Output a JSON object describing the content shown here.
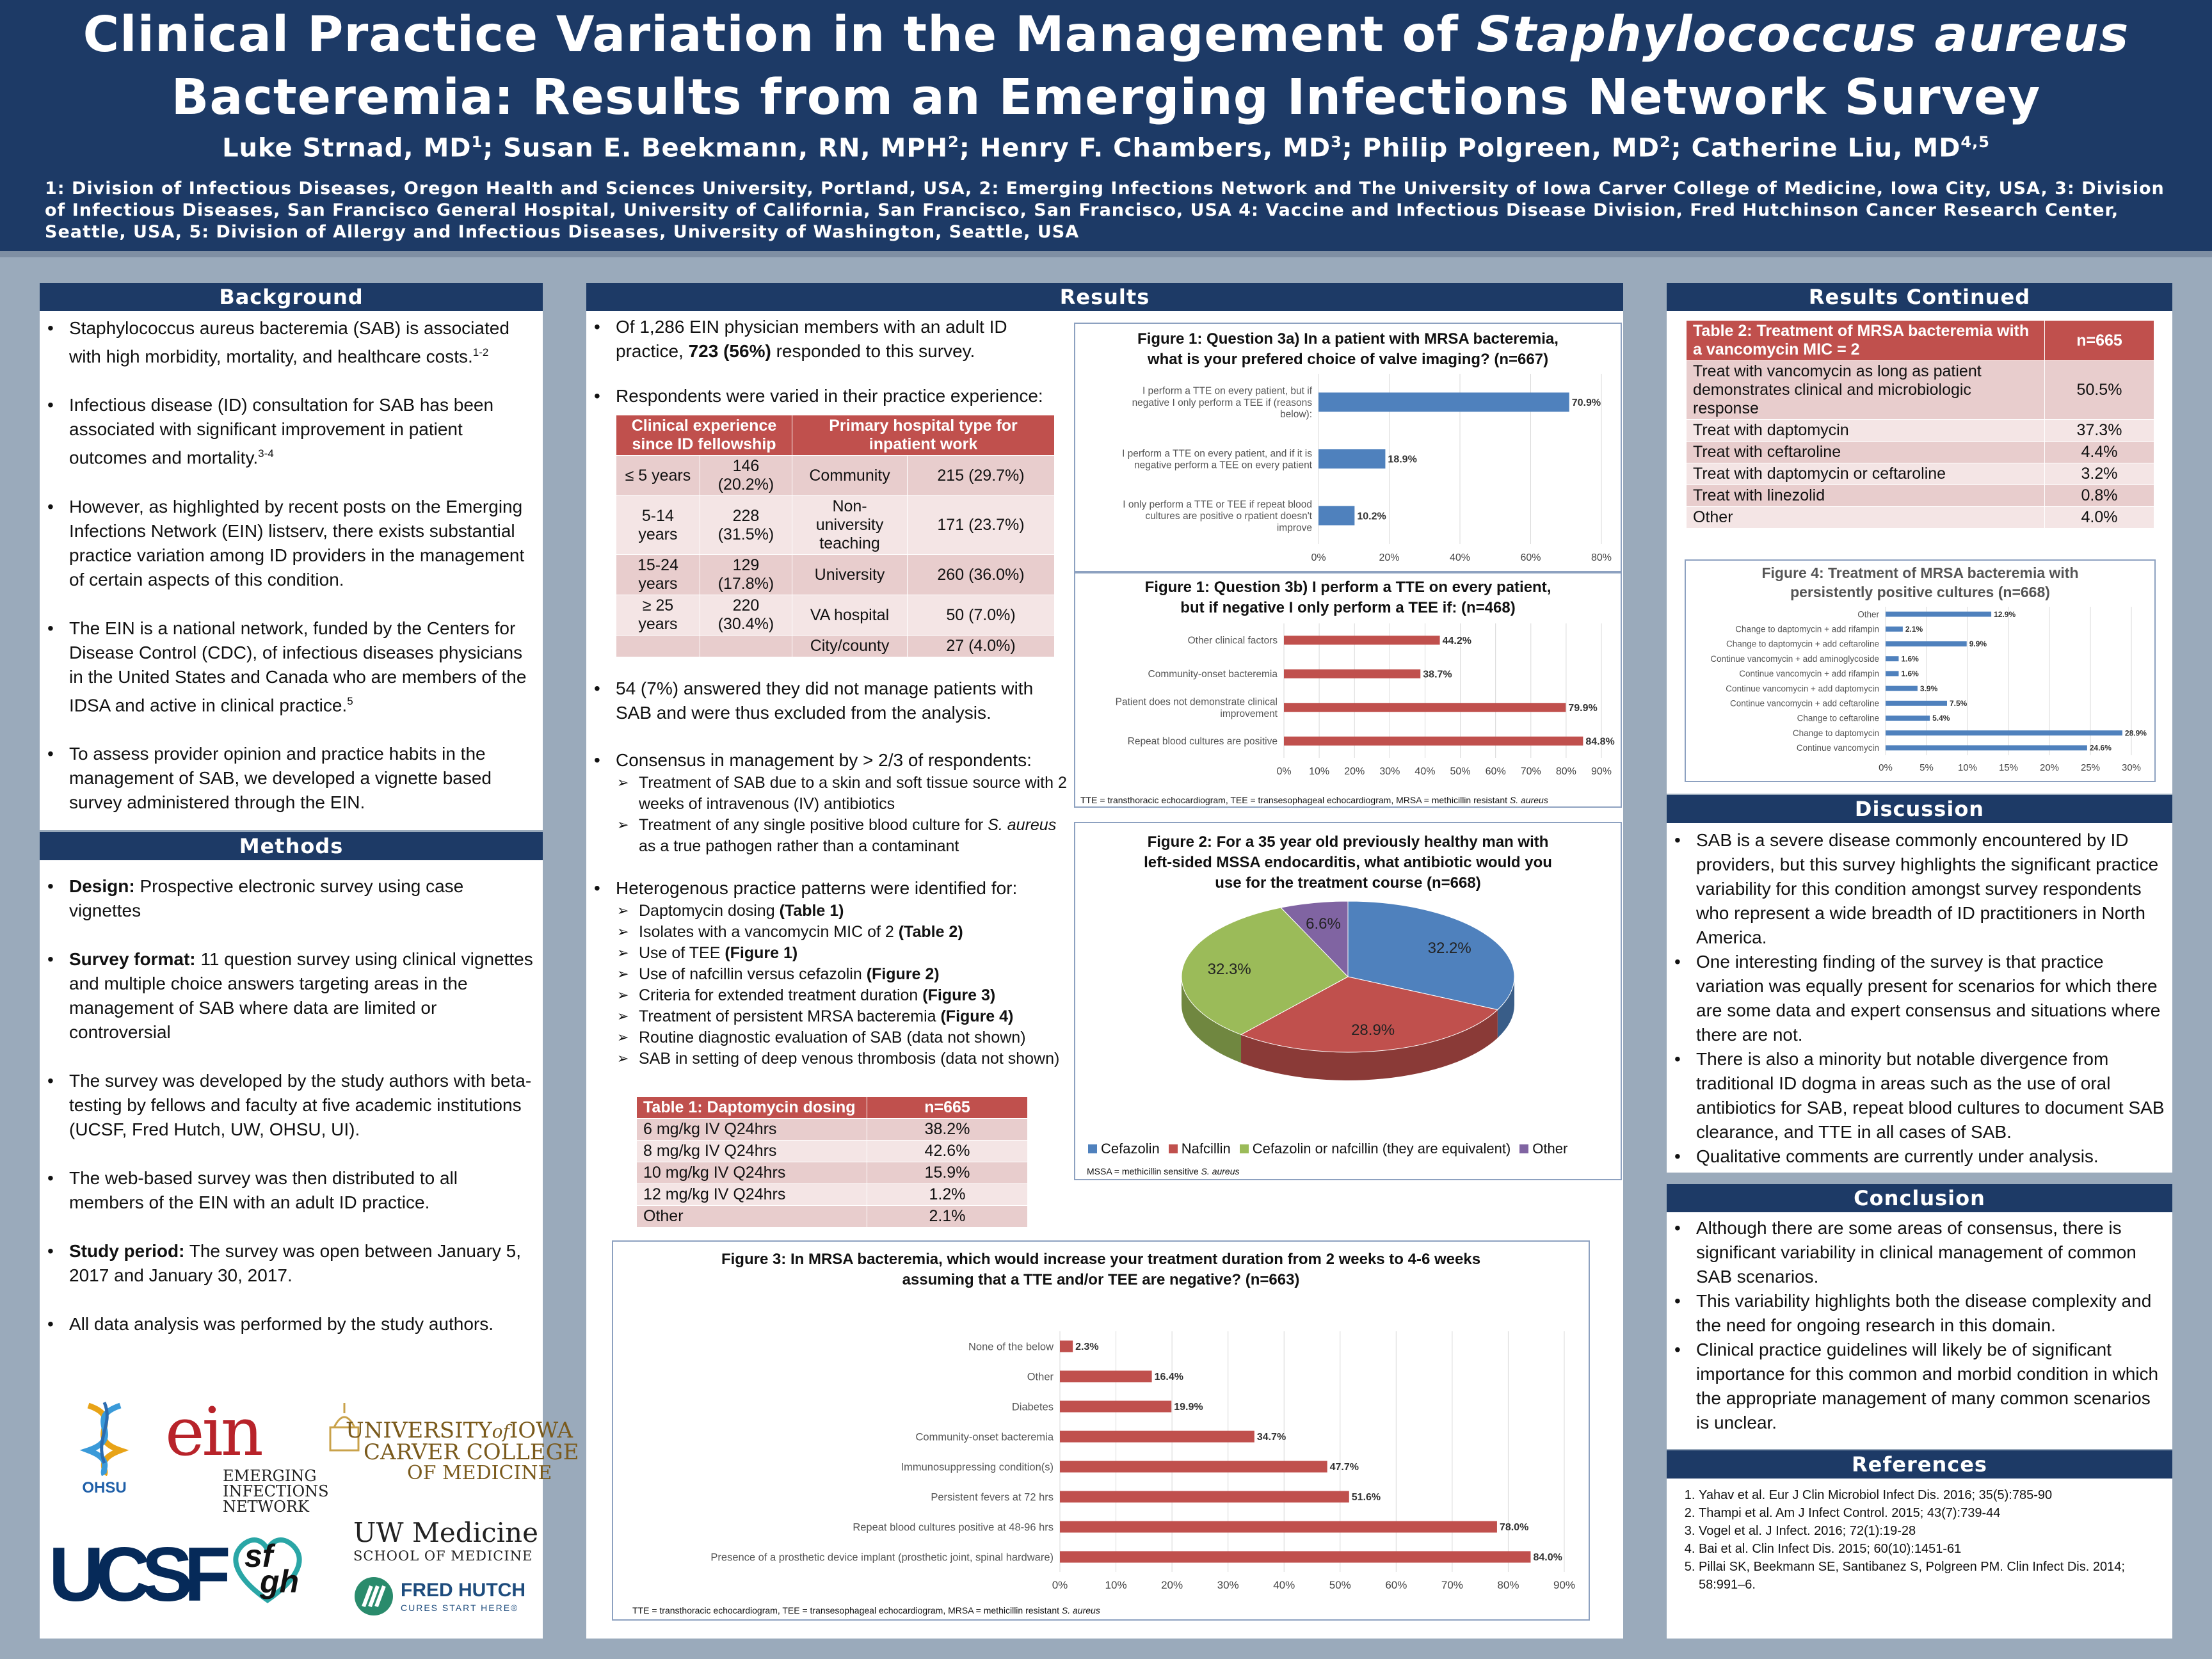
{
  "header": {
    "title_line1_prefix": "Clinical Practice Variation in the Management of ",
    "title_line1_italic": "Staphylococcus aureus",
    "title_line2": "Bacteremia: Results from an Emerging Infections Network Survey",
    "authors": [
      {
        "name": "Luke Strnad, MD",
        "sup": "1",
        "sep": "; "
      },
      {
        "name": "Susan E. Beekmann, RN, MPH",
        "sup": "2",
        "sep": "; "
      },
      {
        "name": "Henry F. Chambers, MD",
        "sup": "3",
        "sep": "; "
      },
      {
        "name": "Philip Polgreen, MD",
        "sup": "2",
        "sep": "; "
      },
      {
        "name": "Catherine Liu, MD",
        "sup": "4,5",
        "sep": ""
      }
    ],
    "affiliations": "1: Division of Infectious Diseases, Oregon Health and Sciences University, Portland, USA, 2: Emerging Infections Network and The University of Iowa Carver College of Medicine, Iowa City, USA, 3: Division of Infectious Diseases, San Francisco General Hospital, University of California, San Francisco, San Francisco, USA 4: Vaccine and Infectious Disease Division, Fred Hutchinson Cancer Research Center, Seattle, USA, 5: Division of Allergy and Infectious Diseases, University of Washington, Seattle, USA"
  },
  "background": {
    "heading": "Background",
    "b1": "Staphylococcus aureus bacteremia (SAB) is associated with high morbidity, mortality, and healthcare costs.",
    "b1_sup": "1-2",
    "b2": "Infectious disease (ID) consultation for SAB has been associated with significant improvement in patient outcomes and mortality.",
    "b2_sup": "3-4",
    "b3": "However, as highlighted by recent posts on the Emerging Infections Network (EIN) listserv, there exists substantial practice variation among ID providers in the management of certain aspects of this condition.",
    "b4": "The EIN is a national network, funded by the Centers for Disease Control (CDC), of infectious diseases physicians in the United States and Canada who are members of the IDSA and active in clinical practice.",
    "b4_sup": "5",
    "b5": "To assess provider opinion and practice habits in the management of SAB, we developed a vignette based survey administered through the EIN."
  },
  "methods": {
    "heading": "Methods",
    "m1_label": "Design:",
    "m1": " Prospective electronic survey using case vignettes",
    "m2_label": "Survey format:",
    "m2": " 11 question survey using clinical vignettes and multiple choice answers targeting areas in the management of SAB where data are limited or controversial",
    "m3": "The survey was developed by the study authors with beta-testing by fellows and faculty at five academic institutions (UCSF, Fred Hutch, UW, OHSU, UI).",
    "m4": "The web-based survey was then distributed to all members of the EIN with an adult ID practice.",
    "m5_label": "Study period:",
    "m5": " The survey was open between January 5, 2017 and January 30, 2017.",
    "m6": "All data analysis was performed by the study authors."
  },
  "logos": {
    "ohsu": "OHSU",
    "ein_mark": "ein",
    "ein_1": "EMERGING",
    "ein_2": "INFECTIONS",
    "ein_3": "NETWORK",
    "iowa_1": "UNIVERSITY",
    "iowa_of": "of",
    "iowa_2": "IOWA",
    "iowa_3": "CARVER COLLEGE",
    "iowa_4": "OF MEDICINE",
    "ucsf": "UCSF",
    "sfgh_1": "sf",
    "sfgh_2": "gh",
    "uw_1": "UW Medicine",
    "uw_2": "SCHOOL OF MEDICINE",
    "fh_1": "FRED HUTCH",
    "fh_2": "CURES START HERE®"
  },
  "results": {
    "heading": "Results",
    "r1_a": "Of 1,286 EIN physician members with an adult ID practice, ",
    "r1_bold": "723 (56%)",
    "r1_b": " responded to this survey.",
    "r2": "Respondents were varied in their practice experience:",
    "r3": "54 (7%) answered they did not manage patients with SAB and were thus excluded from the analysis.",
    "r4": "Consensus in management by > 2/3 of respondents:",
    "r4_a": "Treatment of SAB due to a skin and soft tissue source with 2 weeks of intravenous (IV) antibiotics",
    "r4_b_pre": "Treatment of any single positive blood culture for ",
    "r4_b_it": "S. aureus",
    "r4_b_post": " as a true pathogen rather than a contaminant",
    "r5": "Heterogenous practice patterns were identified for:",
    "r5_items": [
      {
        "text": "Daptomycin dosing ",
        "ref": "(Table 1)"
      },
      {
        "text": "Isolates with a vancomycin MIC of 2 ",
        "ref": "(Table 2)"
      },
      {
        "text": "Use of TEE ",
        "ref": "(Figure 1)"
      },
      {
        "text": "Use of nafcillin versus cefazolin ",
        "ref": "(Figure 2)"
      },
      {
        "text": "Criteria for extended treatment duration ",
        "ref": "(Figure 3)"
      },
      {
        "text": "Treatment of persistent MRSA bacteremia ",
        "ref": "(Figure 4)"
      },
      {
        "text": "Routine diagnostic evaluation of SAB (data not shown)",
        "ref": ""
      },
      {
        "text": "SAB in setting of deep venous thrombosis (data not shown)",
        "ref": ""
      }
    ]
  },
  "exp_table": {
    "h1": "Clinical experience since ID fellowship",
    "h2": "Primary hospital type for inpatient work",
    "rows": [
      [
        "≤ 5 years",
        "146 (20.2%)",
        "Community",
        "215 (29.7%)"
      ],
      [
        "5-14 years",
        "228 (31.5%)",
        "Non-university teaching",
        "171 (23.7%)"
      ],
      [
        "15-24 years",
        "129 (17.8%)",
        "University",
        "260 (36.0%)"
      ],
      [
        "≥ 25 years",
        "220 (30.4%)",
        "VA hospital",
        "50 (7.0%)"
      ],
      [
        "",
        "",
        "City/county",
        "27 (4.0%)"
      ]
    ]
  },
  "table1": {
    "h1": "Table 1: Daptomycin dosing",
    "h2": "n=665",
    "rows": [
      [
        "6 mg/kg IV Q24hrs",
        "38.2%"
      ],
      [
        "8 mg/kg IV Q24hrs",
        "42.6%"
      ],
      [
        "10 mg/kg IV Q24hrs",
        "15.9%"
      ],
      [
        "12 mg/kg IV Q24hrs",
        "1.2%"
      ],
      [
        "Other",
        "2.1%"
      ]
    ]
  },
  "table2": {
    "h1": "Table 2: Treatment of MRSA bacteremia with a vancomycin MIC = 2",
    "h2": "n=665",
    "rows": [
      [
        "Treat with vancomycin as long as patient demonstrates clinical and microbiologic response",
        "50.5%"
      ],
      [
        "Treat with daptomycin",
        "37.3%"
      ],
      [
        "Treat with ceftaroline",
        "4.4%"
      ],
      [
        "Treat with daptomycin or ceftaroline",
        "3.2%"
      ],
      [
        "Treat with linezolid",
        "0.8%"
      ],
      [
        "Other",
        "4.0%"
      ]
    ]
  },
  "results_continued": {
    "heading": "Results Continued"
  },
  "discussion": {
    "heading": "Discussion",
    "items": [
      "SAB is a severe disease commonly encountered by ID providers, but this survey highlights the significant practice variability for this condition amongst survey respondents who represent a wide breadth of ID practitioners in North America.",
      "One interesting finding of the survey is that practice variation was equally present for scenarios for which there are some data and expert consensus and situations where there are not.",
      "There is also a minority but notable divergence from traditional ID dogma in areas such as the use of oral antibiotics for SAB, repeat blood cultures to document SAB clearance, and TTE in all cases of SAB.",
      "Qualitative comments are currently under analysis."
    ]
  },
  "conclusion": {
    "heading": "Conclusion",
    "items": [
      "Although there are some areas of consensus, there is significant variability in clinical management of common SAB scenarios.",
      "This variability highlights both the disease complexity and the need for ongoing research in this domain.",
      "Clinical practice guidelines will likely be of significant importance for this common and morbid condition in which the appropriate management of many common scenarios is unclear."
    ]
  },
  "references": {
    "heading": "References",
    "items": [
      "Yahav et al. Eur J Clin Microbiol Infect Dis. 2016; 35(5):785-90",
      "Thampi et al. Am J Infect Control. 2015; 43(7):739-44",
      "Vogel et al. J Infect. 2016; 72(1):19-28",
      "Bai et al. Clin Infect Dis. 2015; 60(10):1451-61",
      "Pillai SK, Beekmann SE, Santibanez S, Polgreen PM. Clin Infect Dis. 2014; 58:991–6."
    ]
  },
  "notes": {
    "tte": "TTE = transthoracic echocardiogram, TEE = transesophageal echocardiogram, MRSA = methicillin resistant ",
    "tte_it": "S. aureus",
    "mssa": "MSSA = methicillin sensitive ",
    "mssa_it": "S. aureus"
  },
  "chart_data": [
    {
      "id": "fig1a",
      "type": "bar",
      "orientation": "horizontal",
      "title_l1": "Figure 1: Question 3a) In a patient with MRSA bacteremia,",
      "title_l2": "what is your prefered choice of valve imaging? (n=667)",
      "categories": [
        [
          "I perform a TTE on every patient, but if",
          "negative I only perform a TEE if (reasons",
          "below):"
        ],
        [
          "I perform a TTE on every patient, and if it is",
          "negative perform a TEE on every patient"
        ],
        [
          "I only perform a TTE or TEE if repeat blood",
          "cultures are positive o rpatient doesn't",
          "improve"
        ]
      ],
      "values": [
        70.9,
        18.9,
        10.2
      ],
      "labels": [
        "70.9%",
        "18.9%",
        "10.2%"
      ],
      "xlim": [
        0,
        80
      ],
      "ticks": [
        "0%",
        "20%",
        "40%",
        "60%",
        "80%"
      ],
      "color": "#4f81bd"
    },
    {
      "id": "fig1b",
      "type": "bar",
      "orientation": "horizontal",
      "title_l1": "Figure 1: Question 3b) I perform a TTE on every patient,",
      "title_l2": "but if negative I only perform a TEE if: (n=468)",
      "categories": [
        [
          "Other clinical factors"
        ],
        [
          "Community-onset bacteremia"
        ],
        [
          "Patient does not demonstrate clinical",
          "improvement"
        ],
        [
          "Repeat blood cultures are positive"
        ]
      ],
      "values": [
        44.2,
        38.7,
        79.9,
        84.8
      ],
      "labels": [
        "44.2%",
        "38.7%",
        "79.9%",
        "84.8%"
      ],
      "xlim": [
        0,
        90
      ],
      "ticks": [
        "0%",
        "10%",
        "20%",
        "30%",
        "40%",
        "50%",
        "60%",
        "70%",
        "80%",
        "90%"
      ],
      "color": "#c0504d"
    },
    {
      "id": "fig2",
      "type": "pie",
      "title_l1": "Figure 2: For a 35 year old previously healthy man with",
      "title_l2": "left-sided MSSA endocarditis, what antibiotic would you",
      "title_l3": "use for the treatment course (n=668)",
      "series": [
        {
          "name": "Cefazolin",
          "value": 32.2,
          "label": "32.2%",
          "color": "#4f81bd"
        },
        {
          "name": "Nafcillin",
          "value": 28.9,
          "label": "28.9%",
          "color": "#c0504d"
        },
        {
          "name": "Cefazolin or nafcillin (they are equivalent)",
          "value": 32.3,
          "label": "32.3%",
          "color": "#9bbb59"
        },
        {
          "name": "Other",
          "value": 6.6,
          "label": "6.6%",
          "color": "#8064a2"
        }
      ],
      "legend": "bottom"
    },
    {
      "id": "fig3",
      "type": "bar",
      "orientation": "horizontal",
      "title_l1": "Figure 3: In MRSA bacteremia, which would increase your treatment duration from 2 weeks to 4-6 weeks",
      "title_l2": "assuming that a TTE and/or TEE are negative? (n=663)",
      "categories": [
        [
          "None of the below"
        ],
        [
          "Other"
        ],
        [
          "Diabetes"
        ],
        [
          "Community-onset bacteremia"
        ],
        [
          "Immunosuppressing condition(s)"
        ],
        [
          "Persistent fevers at 72 hrs"
        ],
        [
          "Repeat blood cultures positive at 48-96 hrs"
        ],
        [
          "Presence of a prosthetic device implant (prosthetic joint, spinal hardware)"
        ]
      ],
      "values": [
        2.3,
        16.4,
        19.9,
        34.7,
        47.7,
        51.6,
        78.0,
        84.0
      ],
      "labels": [
        "2.3%",
        "16.4%",
        "19.9%",
        "34.7%",
        "47.7%",
        "51.6%",
        "78.0%",
        "84.0%"
      ],
      "xlim": [
        0,
        90
      ],
      "ticks": [
        "0%",
        "10%",
        "20%",
        "30%",
        "40%",
        "50%",
        "60%",
        "70%",
        "80%",
        "90%"
      ],
      "color": "#c0504d"
    },
    {
      "id": "fig4",
      "type": "bar",
      "orientation": "horizontal",
      "title_l1": "Figure 4: Treatment of MRSA bacteremia with",
      "title_l2": "persistently positive cultures (n=668)",
      "categories": [
        [
          "Other"
        ],
        [
          "Change to daptomycin + add rifampin"
        ],
        [
          "Change to daptomycin + add ceftaroline"
        ],
        [
          "Continue vancomycin + add aminoglycoside"
        ],
        [
          "Continue vancomycin + add rifampin"
        ],
        [
          "Continue vancomycin + add daptomycin"
        ],
        [
          "Continue vancomycin + add ceftaroline"
        ],
        [
          "Change to ceftaroline"
        ],
        [
          "Change to daptomycin"
        ],
        [
          "Continue vancomycin"
        ]
      ],
      "values": [
        12.9,
        2.1,
        9.9,
        1.6,
        1.6,
        3.9,
        7.5,
        5.4,
        28.9,
        24.6
      ],
      "labels": [
        "12.9%",
        "2.1%",
        "9.9%",
        "1.6%",
        "1.6%",
        "3.9%",
        "7.5%",
        "5.4%",
        "28.9%",
        "24.6%"
      ],
      "xlim": [
        0,
        30
      ],
      "ticks": [
        "0%",
        "5%",
        "10%",
        "15%",
        "20%",
        "25%",
        "30%"
      ],
      "color": "#4f81bd"
    }
  ]
}
